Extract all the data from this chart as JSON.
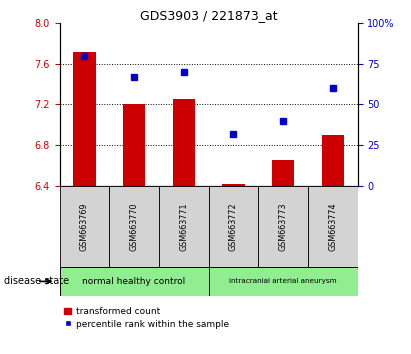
{
  "title": "GDS3903 / 221873_at",
  "samples": [
    "GSM663769",
    "GSM663770",
    "GSM663771",
    "GSM663772",
    "GSM663773",
    "GSM663774"
  ],
  "transformed_count": [
    7.72,
    7.2,
    7.25,
    6.42,
    6.65,
    6.9
  ],
  "percentile_rank": [
    80,
    67,
    70,
    32,
    40,
    60
  ],
  "baseline": 6.4,
  "ylim_left": [
    6.4,
    8.0
  ],
  "ylim_right": [
    0,
    100
  ],
  "yticks_left": [
    6.4,
    6.8,
    7.2,
    7.6,
    8.0
  ],
  "yticks_right": [
    0,
    25,
    50,
    75,
    100
  ],
  "ytick_labels_right": [
    "0",
    "25",
    "50",
    "75",
    "100%"
  ],
  "bar_color": "#cc0000",
  "marker_color": "#0000cc",
  "bar_width": 0.45,
  "disease_groups": [
    {
      "label": "normal healthy control",
      "start": 0,
      "end": 3,
      "color": "#90ee90"
    },
    {
      "label": "intracranial arterial aneurysm",
      "start": 3,
      "end": 6,
      "color": "#90ee90"
    }
  ],
  "disease_state_label": "disease state",
  "legend_bar_label": "transformed count",
  "legend_marker_label": "percentile rank within the sample",
  "sample_box_color": "#d3d3d3"
}
